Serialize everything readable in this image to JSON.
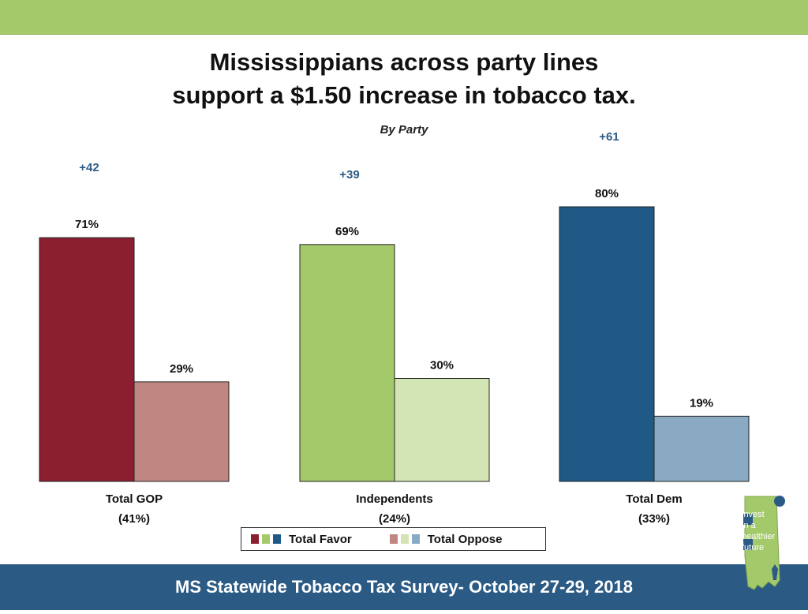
{
  "title": {
    "line1": "Mississippians across party lines",
    "line2": "support a $1.50 increase in tobacco tax."
  },
  "subtitle": "By Party",
  "footer": "MS Statewide Tobacco Tax Survey- October 27-29, 2018",
  "logo": {
    "line1": "invest",
    "line2": "in a",
    "line3": "healthier",
    "line4": "future"
  },
  "legend": {
    "favor_label": "Total Favor",
    "oppose_label": "Total Oppose"
  },
  "colors": {
    "gop_favor": "#8b1e2f",
    "gop_oppose": "#c08681",
    "ind_favor": "#a3c96b",
    "ind_oppose": "#d4e5b5",
    "dem_favor": "#1f5a87",
    "dem_oppose": "#8aa9c3",
    "margin_text": "#2b5b85",
    "top_bar": "#a3c96b",
    "bottom_bar": "#2b5b85"
  },
  "chart_data": {
    "type": "bar",
    "categories": [
      "Total GOP",
      "Independents",
      "Total Dem"
    ],
    "category_sublabels": [
      "(41%)",
      "(24%)",
      "(33%)"
    ],
    "series": [
      {
        "name": "Total Favor",
        "values": [
          71,
          69,
          80
        ],
        "labels": [
          "71%",
          "69%",
          "80%"
        ]
      },
      {
        "name": "Total Oppose",
        "values": [
          29,
          30,
          19
        ],
        "labels": [
          "29%",
          "30%",
          "19%"
        ]
      }
    ],
    "margins": [
      "+42",
      "+39",
      "+61"
    ],
    "ylim": [
      0,
      100
    ],
    "grid": false,
    "legend_position": "bottom"
  }
}
